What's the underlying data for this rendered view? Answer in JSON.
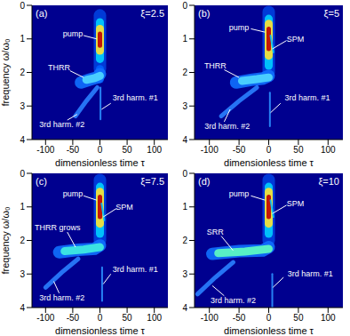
{
  "chart_data": [
    {
      "type": "line",
      "title": "(a)",
      "subtitle": "ξ=2.5",
      "xlabel": "dimensionless time τ",
      "ylabel": "frequency ω/ω₀",
      "xlim": [
        -125,
        125
      ],
      "xticks": [
        -100,
        -50,
        0,
        50,
        100
      ],
      "ylim": [
        4,
        0
      ],
      "yticks": [
        0,
        1,
        2,
        3,
        4
      ],
      "series": [
        {
          "color": "#0040e0",
          "line_style": "broad",
          "points": [
            [
              0,
              0.3
            ],
            [
              0,
              1.9
            ]
          ]
        },
        {
          "color": "#00d0ff",
          "line_style": "bold",
          "points": [
            [
              0,
              0.5
            ],
            [
              0,
              1.6
            ]
          ]
        },
        {
          "color": "#ffe030",
          "line_style": "bold",
          "points": [
            [
              0,
              0.7
            ],
            [
              0,
              1.35
            ]
          ]
        },
        {
          "color": "#c00000",
          "line_style": "medium",
          "points": [
            [
              0,
              0.85
            ],
            [
              0,
              1.2
            ]
          ]
        },
        {
          "color": "#0060ff",
          "line_style": "bold",
          "points": [
            [
              0,
              1.9
            ],
            [
              0,
              2.2
            ]
          ]
        },
        {
          "color": "#1070ff",
          "line_style": "broad",
          "points": [
            [
              -35,
              2.3
            ],
            [
              -20,
              2.22
            ],
            [
              -5,
              2.15
            ],
            [
              0,
              2.05
            ]
          ]
        },
        {
          "color": "#50d8ff",
          "line_style": "bold",
          "points": [
            [
              -25,
              2.22
            ],
            [
              -10,
              2.17
            ],
            [
              0,
              2.1
            ]
          ]
        },
        {
          "color": "#2a7fff",
          "line_style": "medium",
          "points": [
            [
              -5,
              2.45
            ],
            [
              -25,
              2.85
            ],
            [
              -45,
              3.3
            ]
          ]
        },
        {
          "color": "#2a8fff",
          "line_style": "fine",
          "points": [
            [
              1,
              2.45
            ],
            [
              1,
              3.4
            ]
          ]
        }
      ],
      "annotations": [
        {
          "text": "pump",
          "x": -50,
          "y": 0.85,
          "arrow": [
            [
              -30,
              0.9
            ],
            [
              -6,
              1.0
            ]
          ]
        },
        {
          "text": "THRR",
          "x": -75,
          "y": 1.85,
          "arrow": [
            [
              -55,
              1.95
            ],
            [
              -30,
              2.15
            ]
          ]
        },
        {
          "text": "3rd harm. #1",
          "x": 65,
          "y": 2.75,
          "arrow": [
            [
              20,
              2.92
            ],
            [
              3,
              3.1
            ]
          ]
        },
        {
          "text": "3rd harm. #2",
          "x": -70,
          "y": 3.55,
          "arrow": [
            [
              -60,
              3.42
            ],
            [
              -42,
              3.25
            ]
          ]
        }
      ]
    },
    {
      "type": "line",
      "title": "(b)",
      "subtitle": "ξ=5",
      "xlabel": "dimensionless time τ",
      "xlim": [
        -125,
        125
      ],
      "xticks": [
        -100,
        -50,
        0,
        50,
        100
      ],
      "ylim": [
        4,
        0
      ],
      "yticks": [
        0,
        1,
        2,
        3,
        4
      ],
      "series": [
        {
          "color": "#0040e0",
          "line_style": "broad",
          "points": [
            [
              0,
              0.2
            ],
            [
              0,
              2.0
            ]
          ]
        },
        {
          "color": "#00d0ff",
          "line_style": "bold",
          "points": [
            [
              0,
              0.4
            ],
            [
              0,
              1.8
            ]
          ]
        },
        {
          "color": "#ffe030",
          "line_style": "bold",
          "points": [
            [
              0,
              0.55
            ],
            [
              0,
              1.5
            ]
          ]
        },
        {
          "color": "#c00000",
          "line_style": "medium",
          "points": [
            [
              0,
              0.7
            ],
            [
              0,
              1.3
            ]
          ]
        },
        {
          "color": "#00c0ff",
          "line_style": "fine",
          "points": [
            [
              3,
              0.9
            ],
            [
              8,
              1.4
            ]
          ]
        },
        {
          "color": "#1070ff",
          "line_style": "broad",
          "points": [
            [
              -55,
              2.3
            ],
            [
              -30,
              2.22
            ],
            [
              -10,
              2.18
            ],
            [
              0,
              2.1
            ]
          ]
        },
        {
          "color": "#50d8ff",
          "line_style": "bold",
          "points": [
            [
              -45,
              2.25
            ],
            [
              -20,
              2.2
            ],
            [
              0,
              2.15
            ]
          ]
        },
        {
          "color": "#2a7fff",
          "line_style": "medium",
          "points": [
            [
              -20,
              2.45
            ],
            [
              -50,
              2.85
            ],
            [
              -80,
              3.3
            ]
          ]
        },
        {
          "color": "#2a8fff",
          "line_style": "fine",
          "points": [
            [
              2,
              2.6
            ],
            [
              2,
              3.6
            ]
          ]
        }
      ],
      "annotations": [
        {
          "text": "pump",
          "x": -50,
          "y": 0.65,
          "arrow": [
            [
              -30,
              0.7
            ],
            [
              -6,
              0.8
            ]
          ]
        },
        {
          "text": "SPM",
          "x": 45,
          "y": 1.0,
          "arrow": [
            [
              30,
              1.05
            ],
            [
              6,
              1.3
            ]
          ]
        },
        {
          "text": "THRR",
          "x": -90,
          "y": 1.8,
          "arrow": [
            [
              -75,
              1.92
            ],
            [
              -50,
              2.15
            ]
          ]
        },
        {
          "text": "3rd harm. #1",
          "x": 65,
          "y": 2.75,
          "arrow": [
            [
              20,
              2.92
            ],
            [
              3,
              3.2
            ]
          ]
        },
        {
          "text": "3rd harm. #2",
          "x": -70,
          "y": 3.6,
          "arrow": [
            [
              -75,
              3.47
            ],
            [
              -65,
              3.1
            ]
          ]
        }
      ]
    },
    {
      "type": "line",
      "title": "(c)",
      "subtitle": "ξ=7.5",
      "xlabel": "dimensionless time τ",
      "ylabel": "frequency ω/ω₀",
      "xlim": [
        -125,
        125
      ],
      "xticks": [
        -100,
        -50,
        0,
        50,
        100
      ],
      "ylim": [
        4,
        0
      ],
      "yticks": [
        0,
        1,
        2,
        3,
        4
      ],
      "series": [
        {
          "color": "#0040e0",
          "line_style": "broad",
          "points": [
            [
              0,
              0.2
            ],
            [
              0,
              2.0
            ]
          ]
        },
        {
          "color": "#00d0ff",
          "line_style": "bold",
          "points": [
            [
              0,
              0.4
            ],
            [
              0,
              1.8
            ]
          ]
        },
        {
          "color": "#ffe030",
          "line_style": "bold",
          "points": [
            [
              0,
              0.55
            ],
            [
              0,
              1.5
            ]
          ]
        },
        {
          "color": "#c00000",
          "line_style": "medium",
          "points": [
            [
              0,
              0.7
            ],
            [
              0,
              1.3
            ]
          ]
        },
        {
          "color": "#00c0ff",
          "line_style": "fine",
          "points": [
            [
              3,
              0.9
            ],
            [
              8,
              1.4
            ]
          ]
        },
        {
          "color": "#1070ff",
          "line_style": "broad",
          "points": [
            [
              -75,
              2.35
            ],
            [
              -40,
              2.28
            ],
            [
              -10,
              2.25
            ],
            [
              0,
              2.15
            ]
          ]
        },
        {
          "color": "#40f0e0",
          "line_style": "bold",
          "points": [
            [
              -65,
              2.32
            ],
            [
              -30,
              2.27
            ],
            [
              0,
              2.2
            ]
          ]
        },
        {
          "color": "#2a7fff",
          "line_style": "medium",
          "points": [
            [
              -40,
              2.55
            ],
            [
              -70,
              2.95
            ],
            [
              -100,
              3.4
            ]
          ]
        },
        {
          "color": "#2a8fff",
          "line_style": "fine",
          "points": [
            [
              4,
              2.8
            ],
            [
              4,
              3.8
            ]
          ]
        }
      ],
      "annotations": [
        {
          "text": "pump",
          "x": -50,
          "y": 0.6,
          "arrow": [
            [
              -30,
              0.67
            ],
            [
              -6,
              0.8
            ]
          ]
        },
        {
          "text": "SPM",
          "x": 45,
          "y": 1.0,
          "arrow": [
            [
              30,
              1.05
            ],
            [
              6,
              1.3
            ]
          ]
        },
        {
          "text": "THRR grows",
          "x": -78,
          "y": 1.6,
          "arrow": [
            [
              -60,
              1.75
            ],
            [
              -45,
              2.2
            ]
          ]
        },
        {
          "text": "3rd harm. #1",
          "x": 65,
          "y": 2.85,
          "arrow": [
            [
              20,
              3.0
            ],
            [
              6,
              3.3
            ]
          ]
        },
        {
          "text": "3rd harm. #2",
          "x": -70,
          "y": 3.7,
          "arrow": [
            [
              -75,
              3.57
            ],
            [
              -85,
              3.22
            ]
          ]
        }
      ]
    },
    {
      "type": "line",
      "title": "(d)",
      "subtitle": "ξ=10",
      "xlabel": "dimensionless time τ",
      "xlim": [
        -125,
        125
      ],
      "xticks": [
        -100,
        -50,
        0,
        50,
        100
      ],
      "ylim": [
        4,
        0
      ],
      "yticks": [
        0,
        1,
        2,
        3,
        4
      ],
      "series": [
        {
          "color": "#0040e0",
          "line_style": "broad",
          "points": [
            [
              0,
              0.2
            ],
            [
              0,
              2.0
            ]
          ]
        },
        {
          "color": "#00d0ff",
          "line_style": "bold",
          "points": [
            [
              0,
              0.4
            ],
            [
              0,
              1.8
            ]
          ]
        },
        {
          "color": "#ffe030",
          "line_style": "bold",
          "points": [
            [
              0,
              0.55
            ],
            [
              0,
              1.5
            ]
          ]
        },
        {
          "color": "#c00000",
          "line_style": "medium",
          "points": [
            [
              0,
              0.7
            ],
            [
              0,
              1.3
            ]
          ]
        },
        {
          "color": "#00c0ff",
          "line_style": "fine",
          "points": [
            [
              3,
              0.8
            ],
            [
              8,
              1.3
            ]
          ]
        },
        {
          "color": "#1070ff",
          "line_style": "broad",
          "points": [
            [
              -95,
              2.4
            ],
            [
              -50,
              2.32
            ],
            [
              -10,
              2.3
            ],
            [
              0,
              2.2
            ]
          ]
        },
        {
          "color": "#60ffc0",
          "line_style": "bold",
          "points": [
            [
              -85,
              2.38
            ],
            [
              -40,
              2.33
            ],
            [
              0,
              2.25
            ]
          ]
        },
        {
          "color": "#2a7fff",
          "line_style": "medium",
          "points": [
            [
              -60,
              2.65
            ],
            [
              -90,
              3.1
            ],
            [
              -120,
              3.6
            ]
          ]
        },
        {
          "color": "#2a8fff",
          "line_style": "fine",
          "points": [
            [
              6,
              3.0
            ],
            [
              6,
              4.0
            ]
          ]
        }
      ],
      "annotations": [
        {
          "text": "pump",
          "x": -50,
          "y": 0.6,
          "arrow": [
            [
              -30,
              0.67
            ],
            [
              -6,
              0.8
            ]
          ]
        },
        {
          "text": "SPM",
          "x": 45,
          "y": 0.9,
          "arrow": [
            [
              30,
              0.95
            ],
            [
              6,
              1.2
            ]
          ]
        },
        {
          "text": "SRR",
          "x": -90,
          "y": 1.75,
          "arrow": [
            [
              -80,
              1.87
            ],
            [
              -60,
              2.3
            ]
          ]
        },
        {
          "text": "3rd harm. #1",
          "x": 70,
          "y": 3.0,
          "arrow": [
            [
              25,
              3.1
            ],
            [
              7,
              3.4
            ]
          ]
        },
        {
          "text": "3rd harm. #2",
          "x": -60,
          "y": 3.78,
          "arrow": [
            [
              -75,
              3.65
            ],
            [
              -95,
              3.35
            ]
          ]
        }
      ]
    }
  ]
}
